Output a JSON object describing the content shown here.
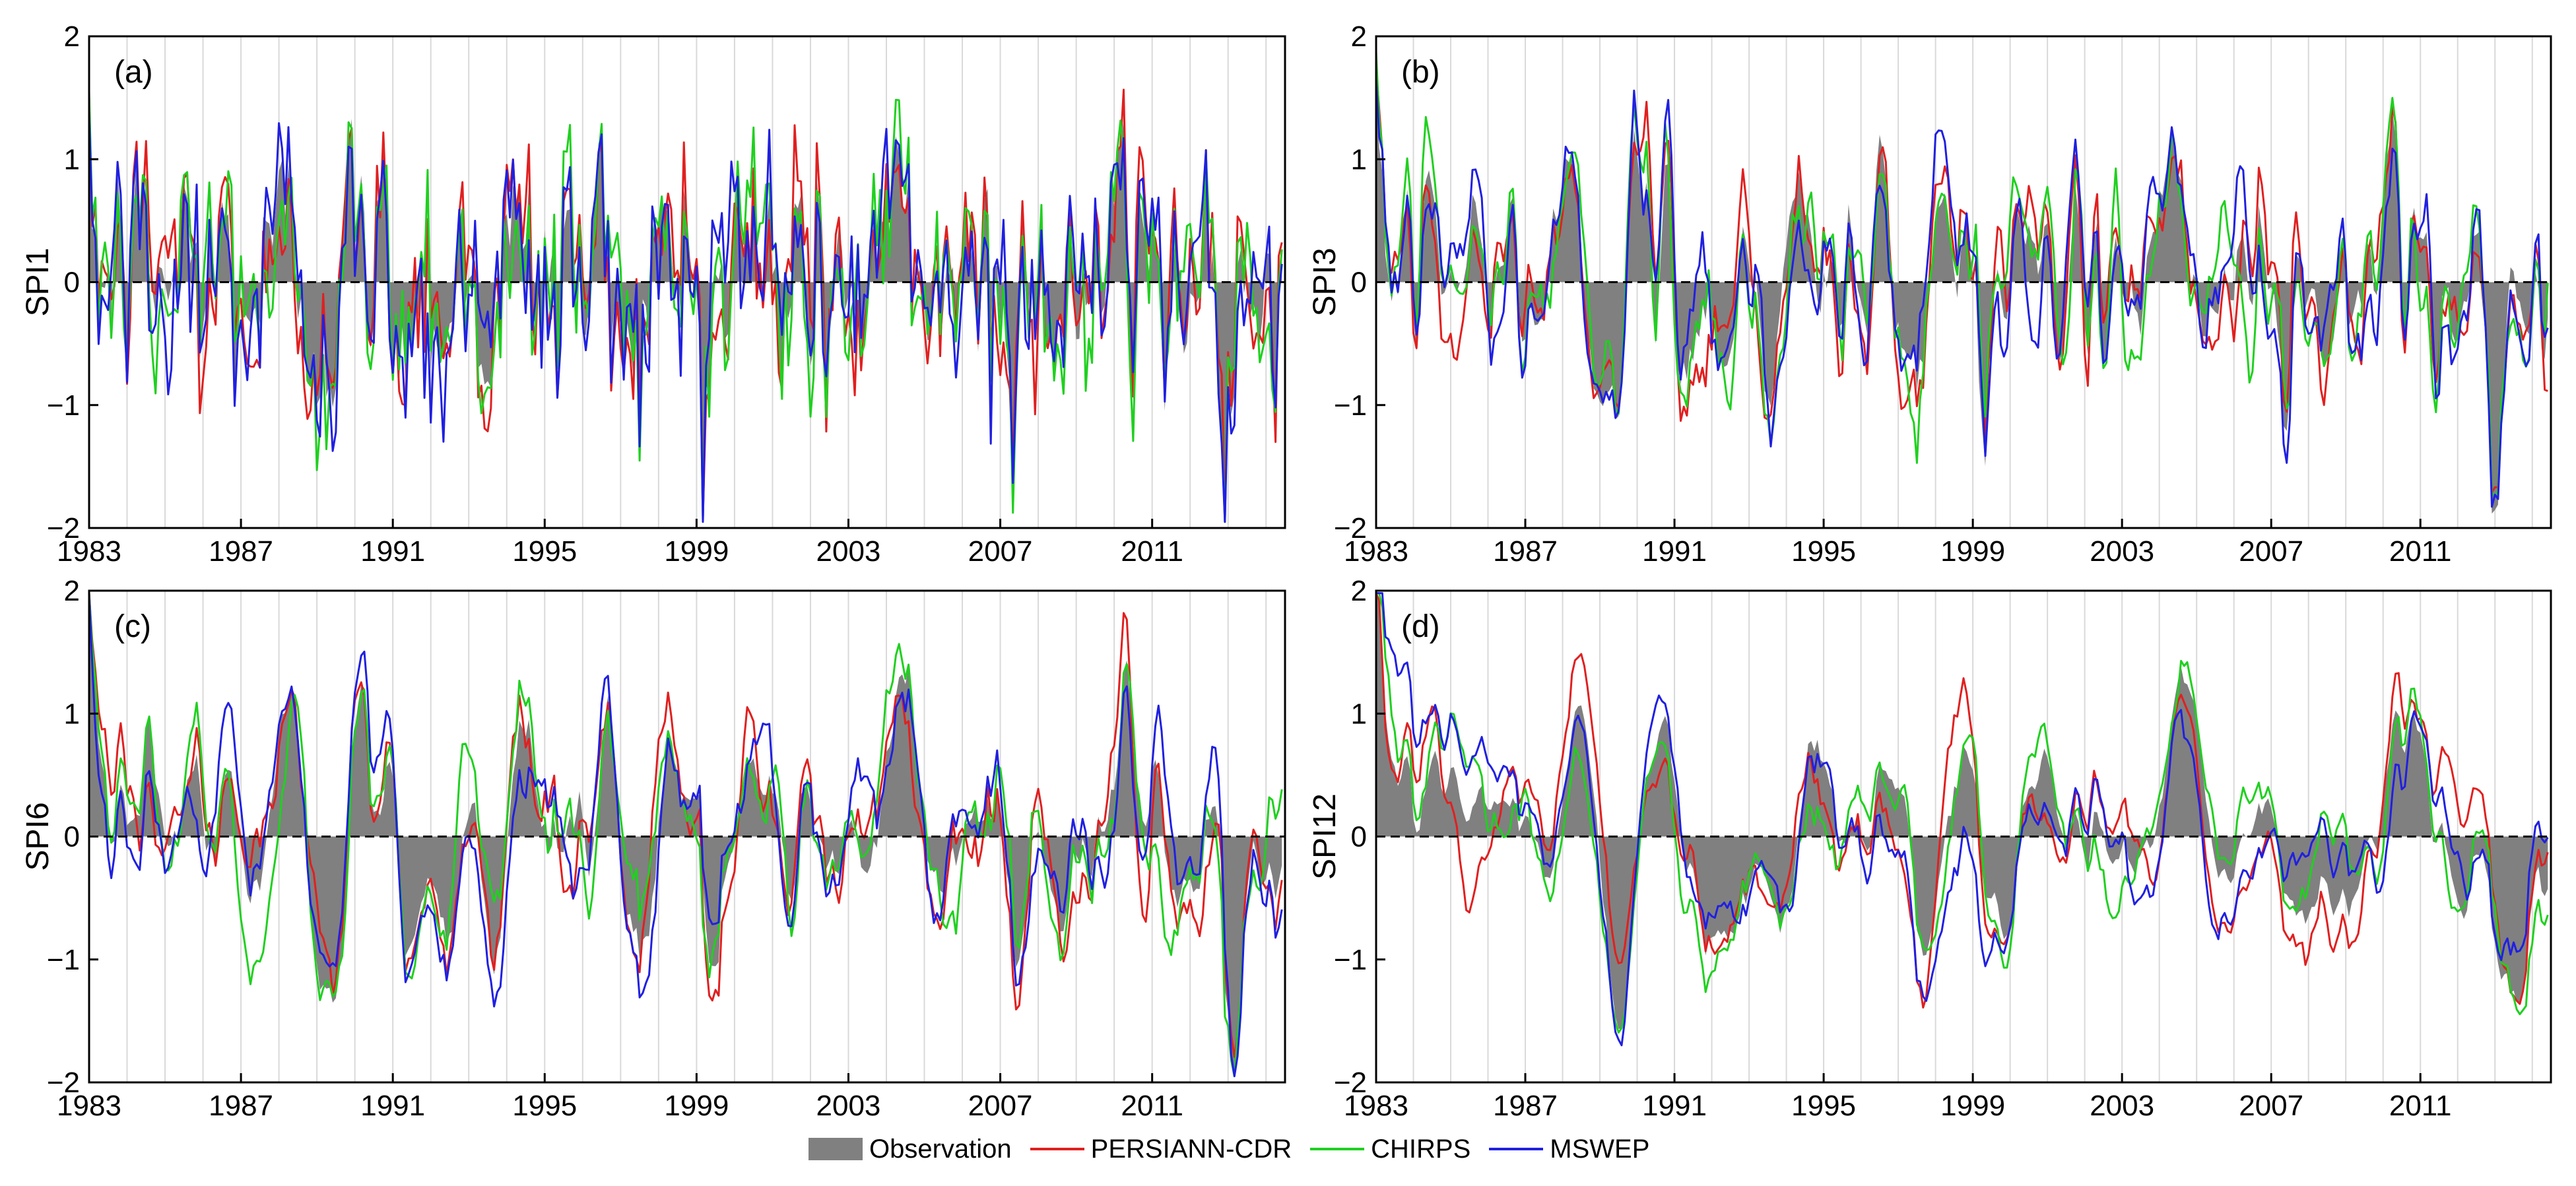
{
  "chart_data": [
    {
      "panel_label": "(a)",
      "type": "line",
      "ylabel": "SPI1",
      "xlim": [
        1983,
        2014.5
      ],
      "ylim": [
        -2,
        2
      ],
      "yticks": [
        -2,
        -1,
        0,
        1,
        2
      ],
      "xticks": [
        1983,
        1987,
        1991,
        1995,
        1999,
        2003,
        2007,
        2011
      ],
      "grid": "vertical-yearly",
      "zero_line": "dashed",
      "series": [
        {
          "name": "Observation",
          "style": "area",
          "color": "#808080"
        },
        {
          "name": "PERSIANN-CDR",
          "style": "line",
          "color": "#e02020"
        },
        {
          "name": "CHIRPS",
          "style": "line",
          "color": "#20d020"
        },
        {
          "name": "MSWEP",
          "style": "line",
          "color": "#2020e0"
        }
      ]
    },
    {
      "panel_label": "(b)",
      "type": "line",
      "ylabel": "SPI3",
      "xlim": [
        1983,
        2014.5
      ],
      "ylim": [
        -2,
        2
      ],
      "yticks": [
        -2,
        -1,
        0,
        1,
        2
      ],
      "xticks": [
        1983,
        1987,
        1991,
        1995,
        1999,
        2003,
        2007,
        2011
      ],
      "grid": "vertical-yearly",
      "zero_line": "dashed",
      "series": [
        {
          "name": "Observation",
          "style": "area",
          "color": "#808080"
        },
        {
          "name": "PERSIANN-CDR",
          "style": "line",
          "color": "#e02020"
        },
        {
          "name": "CHIRPS",
          "style": "line",
          "color": "#20d020"
        },
        {
          "name": "MSWEP",
          "style": "line",
          "color": "#2020e0"
        }
      ]
    },
    {
      "panel_label": "(c)",
      "type": "line",
      "ylabel": "SPI6",
      "xlim": [
        1983,
        2014.5
      ],
      "ylim": [
        -2,
        2
      ],
      "yticks": [
        -2,
        -1,
        0,
        1,
        2
      ],
      "xticks": [
        1983,
        1987,
        1991,
        1995,
        1999,
        2003,
        2007,
        2011
      ],
      "grid": "vertical-yearly",
      "zero_line": "dashed",
      "series": [
        {
          "name": "Observation",
          "style": "area",
          "color": "#808080"
        },
        {
          "name": "PERSIANN-CDR",
          "style": "line",
          "color": "#e02020"
        },
        {
          "name": "CHIRPS",
          "style": "line",
          "color": "#20d020"
        },
        {
          "name": "MSWEP",
          "style": "line",
          "color": "#2020e0"
        }
      ]
    },
    {
      "panel_label": "(d)",
      "type": "line",
      "ylabel": "SPI12",
      "xlim": [
        1983,
        2014.5
      ],
      "ylim": [
        -2,
        2
      ],
      "yticks": [
        -2,
        -1,
        0,
        1,
        2
      ],
      "xticks": [
        1983,
        1987,
        1991,
        1995,
        1999,
        2003,
        2007,
        2011
      ],
      "grid": "vertical-yearly",
      "zero_line": "dashed",
      "series": [
        {
          "name": "Observation",
          "style": "area",
          "color": "#808080"
        },
        {
          "name": "PERSIANN-CDR",
          "style": "line",
          "color": "#e02020"
        },
        {
          "name": "CHIRPS",
          "style": "line",
          "color": "#20d020"
        },
        {
          "name": "MSWEP",
          "style": "line",
          "color": "#2020e0"
        }
      ]
    }
  ],
  "legend": {
    "items": [
      {
        "label": "Observation",
        "swatch": "fill",
        "color": "#808080"
      },
      {
        "label": "PERSIANN-CDR",
        "swatch": "line",
        "color": "#e02020"
      },
      {
        "label": "CHIRPS",
        "swatch": "line",
        "color": "#20d020"
      },
      {
        "label": "MSWEP",
        "swatch": "line",
        "color": "#2020e0"
      }
    ]
  }
}
